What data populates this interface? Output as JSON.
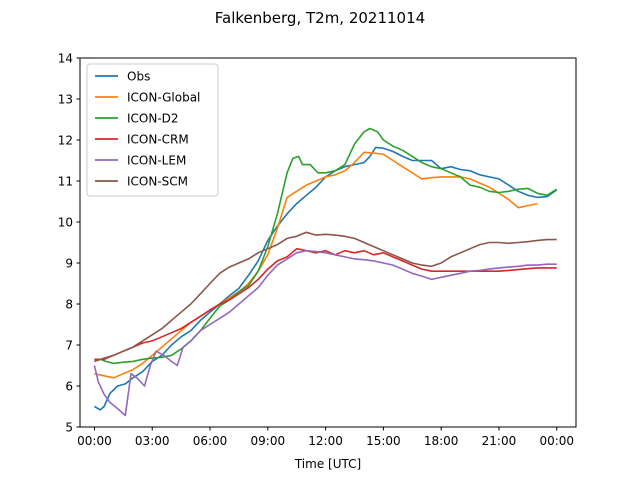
{
  "chart_data": {
    "type": "line",
    "title": "Falkenberg, T2m, 20211014",
    "xlabel": "Time [UTC]",
    "ylabel": "",
    "x_unit": "hours UTC",
    "xlim": [
      -0.75,
      25.0
    ],
    "ylim": [
      5,
      14
    ],
    "xticks": [
      0,
      3,
      6,
      9,
      12,
      15,
      18,
      21,
      24
    ],
    "xtick_labels": [
      "00:00",
      "03:00",
      "06:00",
      "09:00",
      "12:00",
      "15:00",
      "18:00",
      "21:00",
      "00:00"
    ],
    "yticks": [
      5,
      6,
      7,
      8,
      9,
      10,
      11,
      12,
      13,
      14
    ],
    "ytick_labels": [
      "5",
      "6",
      "7",
      "8",
      "9",
      "10",
      "11",
      "12",
      "13",
      "14"
    ],
    "grid": false,
    "legend_position": "top-left",
    "series": [
      {
        "name": "Obs",
        "color": "#1f77b4",
        "points": [
          [
            0,
            5.5
          ],
          [
            0.3,
            5.42
          ],
          [
            0.5,
            5.5
          ],
          [
            0.8,
            5.82
          ],
          [
            1.2,
            6.0
          ],
          [
            1.6,
            6.05
          ],
          [
            2.0,
            6.2
          ],
          [
            2.5,
            6.35
          ],
          [
            3.0,
            6.6
          ],
          [
            3.5,
            6.75
          ],
          [
            4.0,
            7.0
          ],
          [
            4.5,
            7.2
          ],
          [
            5.0,
            7.35
          ],
          [
            5.5,
            7.6
          ],
          [
            6.0,
            7.8
          ],
          [
            6.5,
            8.0
          ],
          [
            7.0,
            8.2
          ],
          [
            7.5,
            8.38
          ],
          [
            8.0,
            8.7
          ],
          [
            8.5,
            9.05
          ],
          [
            9.0,
            9.55
          ],
          [
            9.5,
            9.9
          ],
          [
            10.0,
            10.2
          ],
          [
            10.5,
            10.45
          ],
          [
            11.0,
            10.65
          ],
          [
            11.5,
            10.85
          ],
          [
            12.0,
            11.1
          ],
          [
            12.5,
            11.25
          ],
          [
            13.0,
            11.35
          ],
          [
            13.5,
            11.4
          ],
          [
            14.0,
            11.45
          ],
          [
            14.3,
            11.6
          ],
          [
            14.6,
            11.82
          ],
          [
            15.0,
            11.8
          ],
          [
            15.5,
            11.72
          ],
          [
            16.0,
            11.6
          ],
          [
            16.5,
            11.5
          ],
          [
            17.0,
            11.5
          ],
          [
            17.5,
            11.5
          ],
          [
            18.0,
            11.3
          ],
          [
            18.5,
            11.35
          ],
          [
            19.0,
            11.28
          ],
          [
            19.5,
            11.25
          ],
          [
            20.0,
            11.15
          ],
          [
            20.5,
            11.1
          ],
          [
            21.0,
            11.05
          ],
          [
            21.5,
            10.9
          ],
          [
            22.0,
            10.75
          ],
          [
            22.5,
            10.65
          ],
          [
            23.0,
            10.6
          ],
          [
            23.5,
            10.62
          ],
          [
            24.0,
            10.78
          ]
        ]
      },
      {
        "name": "ICON-Global",
        "color": "#ff7f0e",
        "points": [
          [
            0,
            6.3
          ],
          [
            0.5,
            6.25
          ],
          [
            1.0,
            6.2
          ],
          [
            1.5,
            6.3
          ],
          [
            2.0,
            6.4
          ],
          [
            2.5,
            6.55
          ],
          [
            3.0,
            6.75
          ],
          [
            3.5,
            6.95
          ],
          [
            4.0,
            7.15
          ],
          [
            4.5,
            7.35
          ],
          [
            5.0,
            7.55
          ],
          [
            5.5,
            7.7
          ],
          [
            6.0,
            7.85
          ],
          [
            6.5,
            8.0
          ],
          [
            7.0,
            8.15
          ],
          [
            7.5,
            8.3
          ],
          [
            8.0,
            8.5
          ],
          [
            8.5,
            8.8
          ],
          [
            9.0,
            9.2
          ],
          [
            9.5,
            9.85
          ],
          [
            10.0,
            10.6
          ],
          [
            10.5,
            10.75
          ],
          [
            11.0,
            10.9
          ],
          [
            11.5,
            11.0
          ],
          [
            12.0,
            11.1
          ],
          [
            12.5,
            11.15
          ],
          [
            13.0,
            11.25
          ],
          [
            13.5,
            11.45
          ],
          [
            14.0,
            11.7
          ],
          [
            14.5,
            11.68
          ],
          [
            15.0,
            11.65
          ],
          [
            15.5,
            11.5
          ],
          [
            16.0,
            11.35
          ],
          [
            16.5,
            11.2
          ],
          [
            17.0,
            11.05
          ],
          [
            17.5,
            11.08
          ],
          [
            18.0,
            11.1
          ],
          [
            18.5,
            11.1
          ],
          [
            19.0,
            11.1
          ],
          [
            19.5,
            11.05
          ],
          [
            20.0,
            10.95
          ],
          [
            20.5,
            10.85
          ],
          [
            21.0,
            10.7
          ],
          [
            21.5,
            10.55
          ],
          [
            22.0,
            10.35
          ],
          [
            22.5,
            10.4
          ],
          [
            23.0,
            10.45
          ]
        ]
      },
      {
        "name": "ICON-D2",
        "color": "#2ca02c",
        "points": [
          [
            0,
            6.6
          ],
          [
            0.3,
            6.65
          ],
          [
            0.6,
            6.6
          ],
          [
            1.0,
            6.55
          ],
          [
            1.5,
            6.58
          ],
          [
            2.0,
            6.6
          ],
          [
            2.5,
            6.65
          ],
          [
            3.0,
            6.68
          ],
          [
            3.5,
            6.7
          ],
          [
            4.0,
            6.75
          ],
          [
            4.5,
            6.9
          ],
          [
            5.0,
            7.1
          ],
          [
            5.5,
            7.35
          ],
          [
            6.0,
            7.65
          ],
          [
            6.5,
            7.95
          ],
          [
            7.0,
            8.1
          ],
          [
            7.5,
            8.3
          ],
          [
            8.0,
            8.45
          ],
          [
            8.5,
            8.8
          ],
          [
            9.0,
            9.4
          ],
          [
            9.5,
            10.2
          ],
          [
            10.0,
            11.2
          ],
          [
            10.3,
            11.55
          ],
          [
            10.6,
            11.6
          ],
          [
            10.8,
            11.4
          ],
          [
            11.2,
            11.4
          ],
          [
            11.6,
            11.2
          ],
          [
            12.0,
            11.2
          ],
          [
            12.5,
            11.25
          ],
          [
            13.0,
            11.4
          ],
          [
            13.5,
            11.9
          ],
          [
            14.0,
            12.2
          ],
          [
            14.3,
            12.28
          ],
          [
            14.7,
            12.2
          ],
          [
            15.0,
            12.0
          ],
          [
            15.5,
            11.85
          ],
          [
            16.0,
            11.75
          ],
          [
            16.5,
            11.6
          ],
          [
            17.0,
            11.45
          ],
          [
            17.5,
            11.35
          ],
          [
            18.0,
            11.3
          ],
          [
            18.5,
            11.2
          ],
          [
            19.0,
            11.1
          ],
          [
            19.5,
            10.9
          ],
          [
            20.0,
            10.85
          ],
          [
            20.5,
            10.75
          ],
          [
            21.0,
            10.72
          ],
          [
            21.5,
            10.75
          ],
          [
            22.0,
            10.8
          ],
          [
            22.5,
            10.82
          ],
          [
            23.0,
            10.7
          ],
          [
            23.5,
            10.65
          ],
          [
            24.0,
            10.8
          ]
        ]
      },
      {
        "name": "ICON-CRM",
        "color": "#d62728",
        "points": [
          [
            0,
            6.65
          ],
          [
            0.5,
            6.65
          ],
          [
            1.0,
            6.75
          ],
          [
            1.5,
            6.85
          ],
          [
            2.0,
            6.95
          ],
          [
            2.5,
            7.05
          ],
          [
            3.0,
            7.1
          ],
          [
            3.5,
            7.2
          ],
          [
            4.0,
            7.3
          ],
          [
            4.5,
            7.4
          ],
          [
            5.0,
            7.55
          ],
          [
            5.5,
            7.7
          ],
          [
            6.0,
            7.85
          ],
          [
            6.5,
            8.0
          ],
          [
            7.0,
            8.1
          ],
          [
            7.5,
            8.25
          ],
          [
            8.0,
            8.4
          ],
          [
            8.5,
            8.6
          ],
          [
            9.0,
            8.85
          ],
          [
            9.5,
            9.05
          ],
          [
            10.0,
            9.15
          ],
          [
            10.5,
            9.35
          ],
          [
            11.0,
            9.3
          ],
          [
            11.5,
            9.25
          ],
          [
            12.0,
            9.3
          ],
          [
            12.5,
            9.2
          ],
          [
            13.0,
            9.3
          ],
          [
            13.5,
            9.25
          ],
          [
            14.0,
            9.3
          ],
          [
            14.5,
            9.2
          ],
          [
            15.0,
            9.25
          ],
          [
            15.5,
            9.15
          ],
          [
            16.0,
            9.05
          ],
          [
            16.5,
            8.95
          ],
          [
            17.0,
            8.85
          ],
          [
            17.5,
            8.8
          ],
          [
            18.0,
            8.8
          ],
          [
            18.5,
            8.8
          ],
          [
            19.0,
            8.8
          ],
          [
            19.5,
            8.8
          ],
          [
            20.0,
            8.8
          ],
          [
            20.5,
            8.8
          ],
          [
            21.0,
            8.8
          ],
          [
            21.5,
            8.82
          ],
          [
            22.0,
            8.84
          ],
          [
            22.5,
            8.86
          ],
          [
            23.0,
            8.88
          ],
          [
            23.5,
            8.88
          ],
          [
            24.0,
            8.88
          ]
        ]
      },
      {
        "name": "ICON-LEM",
        "color": "#9467bd",
        "points": [
          [
            0,
            6.5
          ],
          [
            0.2,
            6.1
          ],
          [
            0.5,
            5.8
          ],
          [
            0.8,
            5.6
          ],
          [
            1.2,
            5.45
          ],
          [
            1.6,
            5.28
          ],
          [
            1.9,
            6.3
          ],
          [
            2.2,
            6.2
          ],
          [
            2.6,
            6.0
          ],
          [
            2.9,
            6.5
          ],
          [
            3.2,
            6.85
          ],
          [
            3.6,
            6.75
          ],
          [
            4.0,
            6.6
          ],
          [
            4.3,
            6.5
          ],
          [
            4.6,
            6.95
          ],
          [
            5.0,
            7.1
          ],
          [
            5.5,
            7.35
          ],
          [
            6.0,
            7.5
          ],
          [
            6.5,
            7.65
          ],
          [
            7.0,
            7.8
          ],
          [
            7.5,
            8.0
          ],
          [
            8.0,
            8.2
          ],
          [
            8.5,
            8.4
          ],
          [
            9.0,
            8.7
          ],
          [
            9.5,
            8.95
          ],
          [
            10.0,
            9.1
          ],
          [
            10.5,
            9.25
          ],
          [
            11.0,
            9.3
          ],
          [
            11.5,
            9.28
          ],
          [
            12.0,
            9.25
          ],
          [
            12.5,
            9.2
          ],
          [
            13.0,
            9.15
          ],
          [
            13.5,
            9.1
          ],
          [
            14.0,
            9.08
          ],
          [
            14.5,
            9.05
          ],
          [
            15.0,
            9.0
          ],
          [
            15.5,
            8.95
          ],
          [
            16.0,
            8.85
          ],
          [
            16.5,
            8.75
          ],
          [
            17.0,
            8.68
          ],
          [
            17.5,
            8.6
          ],
          [
            18.0,
            8.65
          ],
          [
            18.5,
            8.7
          ],
          [
            19.0,
            8.75
          ],
          [
            19.5,
            8.8
          ],
          [
            20.0,
            8.82
          ],
          [
            20.5,
            8.85
          ],
          [
            21.0,
            8.88
          ],
          [
            21.5,
            8.9
          ],
          [
            22.0,
            8.92
          ],
          [
            22.5,
            8.95
          ],
          [
            23.0,
            8.95
          ],
          [
            23.5,
            8.97
          ],
          [
            24.0,
            8.97
          ]
        ]
      },
      {
        "name": "ICON-SCM",
        "color": "#8c564b",
        "points": [
          [
            0,
            6.6
          ],
          [
            0.5,
            6.68
          ],
          [
            1.0,
            6.75
          ],
          [
            1.5,
            6.85
          ],
          [
            2.0,
            6.95
          ],
          [
            2.5,
            7.1
          ],
          [
            3.0,
            7.25
          ],
          [
            3.5,
            7.4
          ],
          [
            4.0,
            7.6
          ],
          [
            4.5,
            7.8
          ],
          [
            5.0,
            8.0
          ],
          [
            5.5,
            8.25
          ],
          [
            6.0,
            8.5
          ],
          [
            6.5,
            8.75
          ],
          [
            7.0,
            8.9
          ],
          [
            7.5,
            9.0
          ],
          [
            8.0,
            9.1
          ],
          [
            8.5,
            9.25
          ],
          [
            9.0,
            9.35
          ],
          [
            9.5,
            9.45
          ],
          [
            10.0,
            9.6
          ],
          [
            10.5,
            9.65
          ],
          [
            11.0,
            9.75
          ],
          [
            11.5,
            9.68
          ],
          [
            12.0,
            9.7
          ],
          [
            12.5,
            9.68
          ],
          [
            13.0,
            9.65
          ],
          [
            13.5,
            9.6
          ],
          [
            14.0,
            9.5
          ],
          [
            14.5,
            9.4
          ],
          [
            15.0,
            9.3
          ],
          [
            15.5,
            9.2
          ],
          [
            16.0,
            9.1
          ],
          [
            16.5,
            9.0
          ],
          [
            17.0,
            8.95
          ],
          [
            17.5,
            8.92
          ],
          [
            18.0,
            9.0
          ],
          [
            18.5,
            9.15
          ],
          [
            19.0,
            9.25
          ],
          [
            19.5,
            9.35
          ],
          [
            20.0,
            9.45
          ],
          [
            20.5,
            9.5
          ],
          [
            21.0,
            9.5
          ],
          [
            21.5,
            9.48
          ],
          [
            22.0,
            9.5
          ],
          [
            22.5,
            9.52
          ],
          [
            23.0,
            9.55
          ],
          [
            23.5,
            9.57
          ],
          [
            24.0,
            9.57
          ]
        ]
      }
    ]
  }
}
